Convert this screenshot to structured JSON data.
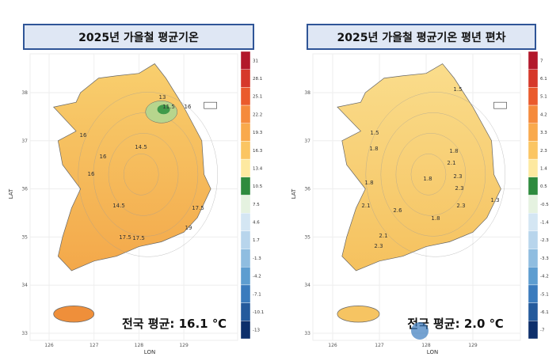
{
  "panels": [
    {
      "title": "2025년 가을철 평균기온",
      "lat_ticks": [
        "38",
        "37",
        "36",
        "35",
        "34",
        "33"
      ],
      "lon_ticks": [
        "126",
        "127",
        "128",
        "129"
      ],
      "x_label": "LON",
      "y_label": "LAT",
      "colorbar_labels": [
        "31",
        "28.1",
        "25.1",
        "22.2",
        "19.3",
        "16.3",
        "13.4",
        "10.5",
        "7.5",
        "4.6",
        "1.7",
        "-1.3",
        "-4.2",
        "-7.1",
        "-10.1",
        "-13"
      ],
      "colorbar_colors": [
        "#b2182b",
        "#d6382a",
        "#ea5a2c",
        "#f58a3c",
        "#f9a94c",
        "#fbc562",
        "#fde9a0",
        "#2e8b3e",
        "#e5f2e0",
        "#d4e6f3",
        "#b8d5ec",
        "#8fbde0",
        "#5d9dd0",
        "#3a7bbd",
        "#245a9c",
        "#0d2f6b"
      ],
      "contour_labels": [
        "13",
        "11.5",
        "16",
        "16",
        "14.5",
        "16",
        "16",
        "14.5",
        "17.5",
        "17.5",
        "19",
        "17.5"
      ],
      "summary": "전국 평균: 16.1 ℃"
    },
    {
      "title": "2025년 가을철 평균기온  평년 편차",
      "lat_ticks": [
        "38",
        "37",
        "36",
        "35",
        "34",
        "33"
      ],
      "lon_ticks": [
        "126",
        "127",
        "128",
        "129"
      ],
      "x_label": "LON",
      "y_label": "LAT",
      "colorbar_labels": [
        "7",
        "6.1",
        "5.1",
        "4.2",
        "3.3",
        "2.3",
        "1.4",
        "0.5",
        "-0.5",
        "-1.4",
        "-2.3",
        "-3.3",
        "-4.2",
        "-5.1",
        "-6.1",
        "-7"
      ],
      "colorbar_colors": [
        "#b2182b",
        "#d6382a",
        "#ea5a2c",
        "#f58a3c",
        "#f9a94c",
        "#fbc562",
        "#fde9a0",
        "#2e8b3e",
        "#e5f2e0",
        "#d4e6f3",
        "#b8d5ec",
        "#8fbde0",
        "#5d9dd0",
        "#3a7bbd",
        "#245a9c",
        "#0d2f6b"
      ],
      "contour_labels": [
        "1.5",
        "1.5",
        "1.8",
        "1.8",
        "2.1",
        "1.8",
        "2.3",
        "1.8",
        "2.1",
        "2.6",
        "2.3",
        "1.8",
        "2.3",
        "2.1",
        "2.3",
        "1.3"
      ],
      "summary": "전국 평균: 2.0 ℃"
    }
  ]
}
